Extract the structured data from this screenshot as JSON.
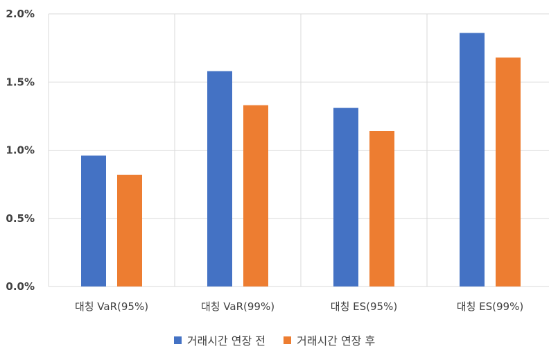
{
  "chart_data": {
    "type": "bar",
    "categories": [
      "대칭 VaR(95%)",
      "대칭 VaR(99%)",
      "대칭 ES(95%)",
      "대칭 ES(99%)"
    ],
    "series": [
      {
        "name": "거래시간 연장 전",
        "values": [
          0.96,
          1.58,
          1.31,
          1.86
        ],
        "color": "#4472C4"
      },
      {
        "name": "거래시간 연장 후",
        "values": [
          0.82,
          1.33,
          1.14,
          1.68
        ],
        "color": "#ED7D31"
      }
    ],
    "yticks": [
      "0.0%",
      "0.5%",
      "1.0%",
      "1.5%",
      "2.0%"
    ],
    "ylim": [
      0,
      2.0
    ],
    "unit": "%",
    "grid": true,
    "legend_position": "bottom"
  }
}
